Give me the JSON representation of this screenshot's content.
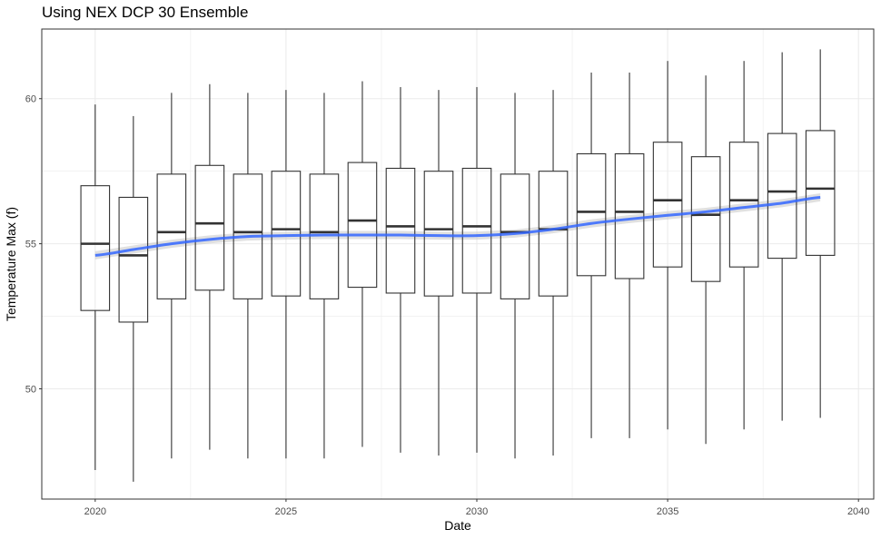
{
  "chart_data": {
    "type": "box",
    "title": "Using NEX DCP 30 Ensemble",
    "xlabel": "Date",
    "ylabel": "Temperature Max (f)",
    "xlim": [
      2018.6,
      2040.4
    ],
    "ylim": [
      46.2,
      62.4
    ],
    "x_ticks": [
      2020,
      2025,
      2030,
      2035,
      2040
    ],
    "y_ticks": [
      50,
      55,
      60
    ],
    "grid": true,
    "legend": "none",
    "colors": {
      "box": "#333333",
      "smooth": "#3366ff",
      "ribbon": "#c7c7c7",
      "grid": "#ebebeb",
      "panel_border": "#333333"
    },
    "boxes": [
      {
        "x": 2020,
        "lower_whisker": 47.2,
        "q1": 52.7,
        "median": 55.0,
        "q3": 57.0,
        "upper_whisker": 59.8
      },
      {
        "x": 2021,
        "lower_whisker": 46.8,
        "q1": 52.3,
        "median": 54.6,
        "q3": 56.6,
        "upper_whisker": 59.4
      },
      {
        "x": 2022,
        "lower_whisker": 47.6,
        "q1": 53.1,
        "median": 55.4,
        "q3": 57.4,
        "upper_whisker": 60.2
      },
      {
        "x": 2023,
        "lower_whisker": 47.9,
        "q1": 53.4,
        "median": 55.7,
        "q3": 57.7,
        "upper_whisker": 60.5
      },
      {
        "x": 2024,
        "lower_whisker": 47.6,
        "q1": 53.1,
        "median": 55.4,
        "q3": 57.4,
        "upper_whisker": 60.2
      },
      {
        "x": 2025,
        "lower_whisker": 47.6,
        "q1": 53.2,
        "median": 55.5,
        "q3": 57.5,
        "upper_whisker": 60.3
      },
      {
        "x": 2026,
        "lower_whisker": 47.6,
        "q1": 53.1,
        "median": 55.4,
        "q3": 57.4,
        "upper_whisker": 60.2
      },
      {
        "x": 2027,
        "lower_whisker": 48.0,
        "q1": 53.5,
        "median": 55.8,
        "q3": 57.8,
        "upper_whisker": 60.6
      },
      {
        "x": 2028,
        "lower_whisker": 47.8,
        "q1": 53.3,
        "median": 55.6,
        "q3": 57.6,
        "upper_whisker": 60.4
      },
      {
        "x": 2029,
        "lower_whisker": 47.7,
        "q1": 53.2,
        "median": 55.5,
        "q3": 57.5,
        "upper_whisker": 60.3
      },
      {
        "x": 2030,
        "lower_whisker": 47.8,
        "q1": 53.3,
        "median": 55.6,
        "q3": 57.6,
        "upper_whisker": 60.4
      },
      {
        "x": 2031,
        "lower_whisker": 47.6,
        "q1": 53.1,
        "median": 55.4,
        "q3": 57.4,
        "upper_whisker": 60.2
      },
      {
        "x": 2032,
        "lower_whisker": 47.7,
        "q1": 53.2,
        "median": 55.5,
        "q3": 57.5,
        "upper_whisker": 60.3
      },
      {
        "x": 2033,
        "lower_whisker": 48.3,
        "q1": 53.9,
        "median": 56.1,
        "q3": 58.1,
        "upper_whisker": 60.9
      },
      {
        "x": 2034,
        "lower_whisker": 48.3,
        "q1": 53.8,
        "median": 56.1,
        "q3": 58.1,
        "upper_whisker": 60.9
      },
      {
        "x": 2035,
        "lower_whisker": 48.6,
        "q1": 54.2,
        "median": 56.5,
        "q3": 58.5,
        "upper_whisker": 61.3
      },
      {
        "x": 2036,
        "lower_whisker": 48.1,
        "q1": 53.7,
        "median": 56.0,
        "q3": 58.0,
        "upper_whisker": 60.8
      },
      {
        "x": 2037,
        "lower_whisker": 48.6,
        "q1": 54.2,
        "median": 56.5,
        "q3": 58.5,
        "upper_whisker": 61.3
      },
      {
        "x": 2038,
        "lower_whisker": 48.9,
        "q1": 54.5,
        "median": 56.8,
        "q3": 58.8,
        "upper_whisker": 61.6
      },
      {
        "x": 2039,
        "lower_whisker": 49.0,
        "q1": 54.6,
        "median": 56.9,
        "q3": 58.9,
        "upper_whisker": 61.7
      }
    ],
    "smooth_line": {
      "x": [
        2020,
        2021,
        2022,
        2023,
        2024,
        2025,
        2026,
        2027,
        2028,
        2029,
        2030,
        2031,
        2032,
        2033,
        2034,
        2035,
        2036,
        2037,
        2038,
        2039
      ],
      "y": [
        54.6,
        54.8,
        55.0,
        55.15,
        55.25,
        55.28,
        55.3,
        55.3,
        55.3,
        55.28,
        55.28,
        55.35,
        55.5,
        55.7,
        55.85,
        55.98,
        56.1,
        56.25,
        56.4,
        56.6
      ]
    }
  }
}
